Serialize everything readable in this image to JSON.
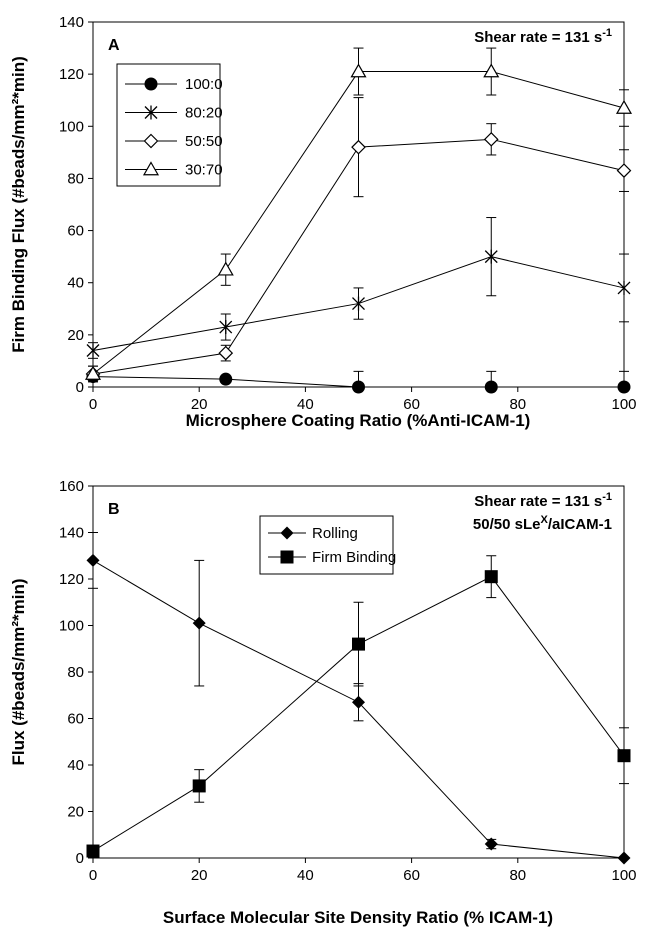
{
  "chart_data": [
    {
      "type": "line",
      "panel_label": "A",
      "annotation": {
        "text": "Shear rate = 131 s",
        "sup": "-1"
      },
      "xlabel": "Microsphere Coating Ratio (%Anti-ICAM-1)",
      "ylabel": "Firm Binding Flux (#beads/mm²*min)",
      "xlim": [
        0,
        100
      ],
      "ylim": [
        0,
        140
      ],
      "xticks": [
        "0",
        "20",
        "40",
        "60",
        "80",
        "100"
      ],
      "yticks": [
        "0",
        "20",
        "40",
        "60",
        "80",
        "100",
        "120",
        "140"
      ],
      "legend_position": "top-left",
      "x": [
        0,
        25,
        50,
        75,
        100
      ],
      "series": [
        {
          "name": "100:0",
          "marker": "circle-filled",
          "values": [
            4,
            3,
            0,
            0,
            0
          ],
          "errors": [
            0,
            0,
            6,
            6,
            6
          ]
        },
        {
          "name": "80:20",
          "marker": "asterisk",
          "values": [
            14,
            23,
            32,
            50,
            38
          ],
          "errors": [
            3,
            5,
            6,
            15,
            13
          ]
        },
        {
          "name": "50:50",
          "marker": "diamond-open",
          "values": [
            5,
            13,
            92,
            95,
            83
          ],
          "errors": [
            3,
            3,
            19,
            6,
            8
          ]
        },
        {
          "name": "30:70",
          "marker": "triangle-open",
          "values": [
            5,
            45,
            121,
            121,
            107
          ],
          "errors": [
            3,
            6,
            9,
            9,
            7
          ]
        }
      ]
    },
    {
      "type": "line",
      "panel_label": "B",
      "annotation": {
        "text": "Shear rate = 131 s",
        "sup": "-1",
        "line2": "50/50 sLe",
        "line2_sup": "X",
        "line2_rest": "/aICAM-1"
      },
      "xlabel": "Surface Molecular Site Density Ratio (% ICAM-1)",
      "ylabel": "Flux (#beads/mm²*min)",
      "xlim": [
        0,
        100
      ],
      "ylim": [
        0,
        160
      ],
      "xticks": [
        "0",
        "20",
        "40",
        "60",
        "80",
        "100"
      ],
      "yticks": [
        "0",
        "20",
        "40",
        "60",
        "80",
        "100",
        "120",
        "140",
        "160"
      ],
      "legend_position": "top-center",
      "x": [
        0,
        20,
        50,
        75,
        100
      ],
      "series": [
        {
          "name": "Rolling",
          "marker": "diamond-filled",
          "values": [
            128,
            101,
            67,
            6,
            0
          ],
          "errors": [
            12,
            27,
            8,
            2,
            0
          ]
        },
        {
          "name": "Firm Binding",
          "marker": "square-filled",
          "values": [
            3,
            31,
            92,
            121,
            44
          ],
          "errors": [
            0,
            7,
            18,
            9,
            12
          ]
        }
      ]
    }
  ]
}
